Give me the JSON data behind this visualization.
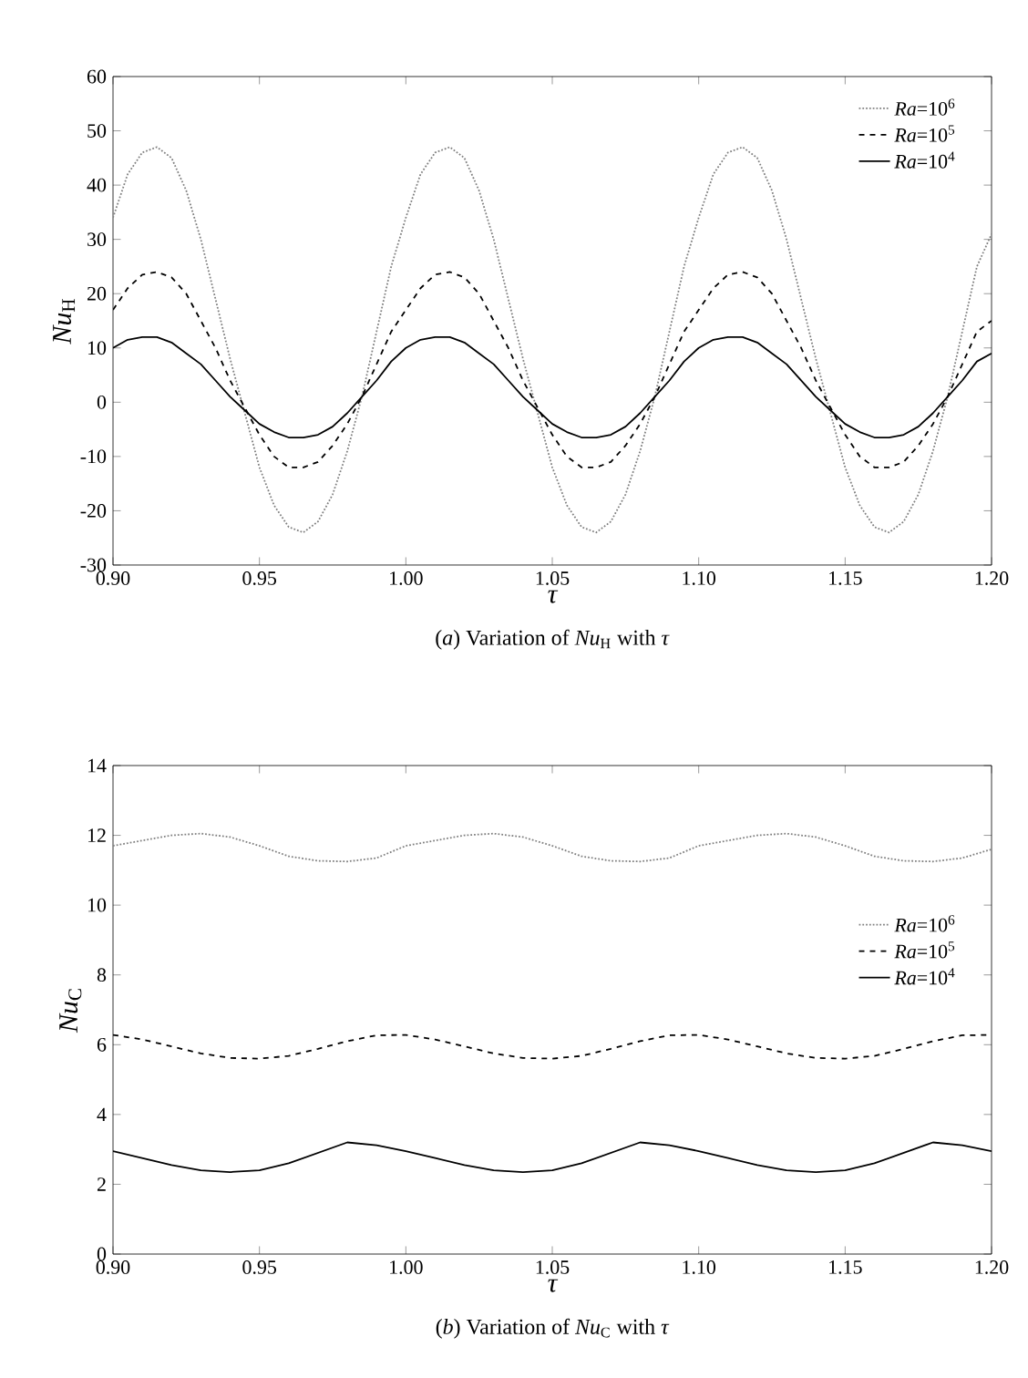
{
  "chart_data": [
    {
      "type": "line",
      "title": "(*a*) Variation of *Nu*$_{H}$ with *τ*",
      "xlabel": "τ",
      "ylabel": "*Nu*$_{H}$",
      "x": [
        0.9,
        0.905,
        0.91,
        0.915,
        0.92,
        0.925,
        0.93,
        0.935,
        0.94,
        0.945,
        0.95,
        0.955,
        0.96,
        0.965,
        0.97,
        0.975,
        0.98,
        0.985,
        0.99,
        0.995,
        1.0,
        1.005,
        1.01,
        1.015,
        1.02,
        1.025,
        1.03,
        1.035,
        1.04,
        1.045,
        1.05,
        1.055,
        1.06,
        1.065,
        1.07,
        1.075,
        1.08,
        1.085,
        1.09,
        1.095,
        1.1,
        1.105,
        1.11,
        1.115,
        1.12,
        1.125,
        1.13,
        1.135,
        1.14,
        1.145,
        1.15,
        1.155,
        1.16,
        1.165,
        1.17,
        1.175,
        1.18,
        1.185,
        1.19,
        1.195,
        1.2
      ],
      "series": [
        {
          "name": "*Ra*=10$^{6}$",
          "color": "#808080",
          "line_style": "dotted",
          "values": [
            34,
            42,
            46,
            47,
            45,
            39,
            30,
            19,
            8,
            -2,
            -12,
            -19,
            -23,
            -24,
            -22,
            -17,
            -9,
            1,
            13,
            25,
            34,
            42,
            46,
            47,
            45,
            39,
            30,
            19,
            8,
            -2,
            -12,
            -19,
            -23,
            -24,
            -22,
            -17,
            -9,
            1,
            13,
            25,
            34,
            42,
            46,
            47,
            45,
            39,
            30,
            19,
            8,
            -2,
            -12,
            -19,
            -23,
            -24,
            -22,
            -17,
            -9,
            1,
            13,
            25,
            31
          ]
        },
        {
          "name": "*Ra*=10$^{5}$",
          "color": "#000000",
          "line_style": "dashed",
          "values": [
            17,
            21,
            23.5,
            24,
            23,
            20,
            15,
            10,
            4,
            -1,
            -6,
            -10,
            -12,
            -12,
            -11,
            -8,
            -4,
            1,
            7,
            13,
            17,
            21,
            23.5,
            24,
            23,
            20,
            15,
            10,
            4,
            -1,
            -6,
            -10,
            -12,
            -12,
            -11,
            -8,
            -4,
            1,
            7,
            13,
            17,
            21,
            23.5,
            24,
            23,
            20,
            15,
            10,
            4,
            -1,
            -6,
            -10,
            -12,
            -12,
            -11,
            -8,
            -4,
            1,
            7,
            13,
            15
          ]
        },
        {
          "name": "*Ra*=10$^{4}$",
          "color": "#000000",
          "line_style": "solid",
          "values": [
            10,
            11.5,
            12,
            12,
            11,
            9,
            7,
            4,
            1,
            -1.5,
            -4,
            -5.5,
            -6.5,
            -6.5,
            -6,
            -4.5,
            -2,
            1,
            4,
            7.5,
            10,
            11.5,
            12,
            12,
            11,
            9,
            7,
            4,
            1,
            -1.5,
            -4,
            -5.5,
            -6.5,
            -6.5,
            -6,
            -4.5,
            -2,
            1,
            4,
            7.5,
            10,
            11.5,
            12,
            12,
            11,
            9,
            7,
            4,
            1,
            -1.5,
            -4,
            -5.5,
            -6.5,
            -6.5,
            -6,
            -4.5,
            -2,
            1,
            4,
            7.5,
            9
          ]
        }
      ],
      "xlim": [
        0.9,
        1.2
      ],
      "xticks": [
        {
          "value": 0.9,
          "label": "0.90"
        },
        0.95,
        {
          "value": 1.0,
          "label": "1.00"
        },
        1.05,
        {
          "value": 1.1,
          "label": "1.10"
        },
        1.15,
        {
          "value": 1.2,
          "label": "1.20"
        }
      ],
      "ylim": [
        -30,
        60
      ],
      "yticks": [
        -30,
        -20,
        -10,
        0,
        10,
        20,
        30,
        40,
        50,
        60
      ],
      "legend": "top right"
    },
    {
      "type": "line",
      "title": "(*b*) Variation of *Nu*$_{C}$ with *τ*",
      "xlabel": "τ",
      "ylabel": "*Nu*$_{C}$",
      "x": [
        0.9,
        0.91,
        0.92,
        0.93,
        0.94,
        0.95,
        0.96,
        0.97,
        0.98,
        0.99,
        1.0,
        1.01,
        1.02,
        1.03,
        1.04,
        1.05,
        1.06,
        1.07,
        1.08,
        1.09,
        1.1,
        1.11,
        1.12,
        1.13,
        1.14,
        1.15,
        1.16,
        1.17,
        1.18,
        1.19,
        1.2
      ],
      "series": [
        {
          "name": "*Ra*=10$^{6}$",
          "color": "#808080",
          "line_style": "dotted",
          "values": [
            11.7,
            11.85,
            12.0,
            12.05,
            11.95,
            11.7,
            11.4,
            11.27,
            11.25,
            11.35,
            11.7,
            11.85,
            12.0,
            12.05,
            11.95,
            11.7,
            11.4,
            11.27,
            11.25,
            11.35,
            11.7,
            11.85,
            12.0,
            12.05,
            11.95,
            11.7,
            11.4,
            11.27,
            11.25,
            11.35,
            11.6
          ]
        },
        {
          "name": "*Ra*=10$^{5}$",
          "color": "#000000",
          "line_style": "dashed",
          "values": [
            6.28,
            6.15,
            5.95,
            5.75,
            5.62,
            5.6,
            5.68,
            5.88,
            6.1,
            6.27,
            6.28,
            6.15,
            5.95,
            5.75,
            5.62,
            5.6,
            5.68,
            5.88,
            6.1,
            6.27,
            6.28,
            6.15,
            5.95,
            5.75,
            5.62,
            5.6,
            5.68,
            5.88,
            6.1,
            6.27,
            6.28
          ]
        },
        {
          "name": "*Ra*=10$^{4}$",
          "color": "#000000",
          "line_style": "solid",
          "values": [
            2.95,
            2.75,
            2.55,
            2.4,
            2.35,
            2.4,
            2.6,
            2.9,
            3.2,
            3.12,
            2.95,
            2.75,
            2.55,
            2.4,
            2.35,
            2.4,
            2.6,
            2.9,
            3.2,
            3.12,
            2.95,
            2.75,
            2.55,
            2.4,
            2.35,
            2.4,
            2.6,
            2.9,
            3.2,
            3.12,
            2.95
          ]
        }
      ],
      "xlim": [
        0.9,
        1.2
      ],
      "xticks": [
        {
          "value": 0.9,
          "label": "0.90"
        },
        0.95,
        {
          "value": 1.0,
          "label": "1.00"
        },
        1.05,
        {
          "value": 1.1,
          "label": "1.10"
        },
        1.15,
        {
          "value": 1.2,
          "label": "1.20"
        }
      ],
      "ylim": [
        0,
        14
      ],
      "yticks": [
        0,
        2,
        4,
        6,
        8,
        10,
        12,
        14
      ],
      "legend": "right"
    }
  ]
}
